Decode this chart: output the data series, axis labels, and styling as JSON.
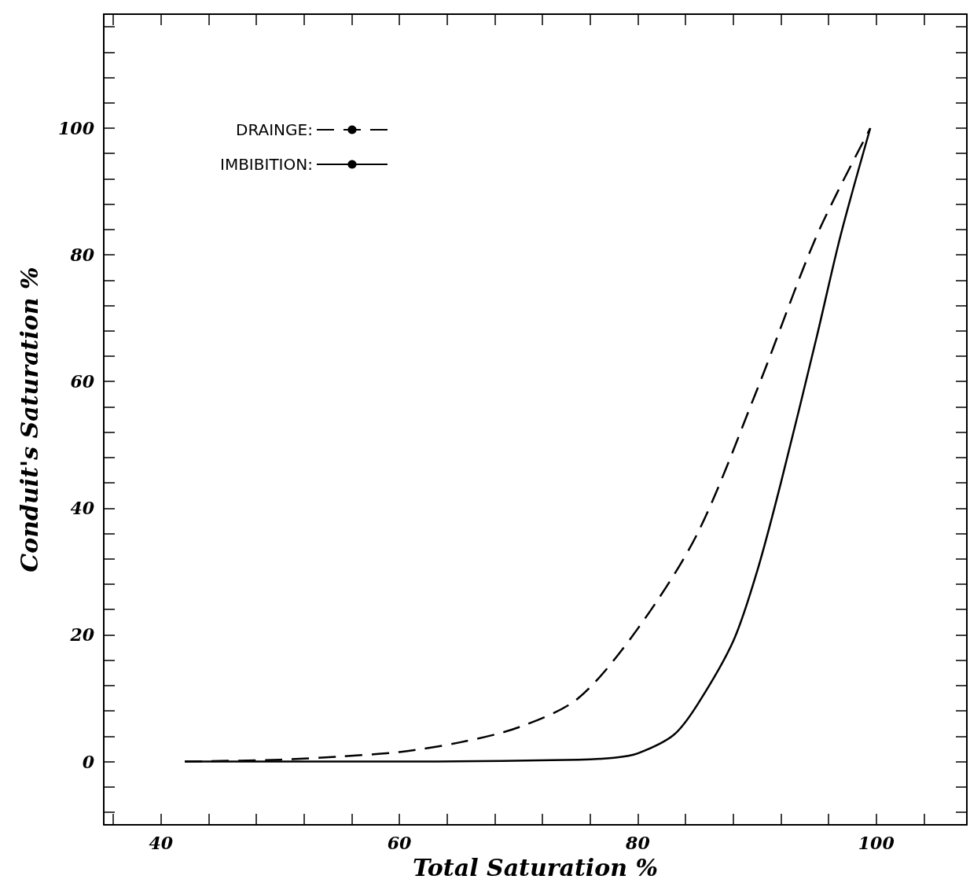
{
  "chart_data": {
    "type": "line",
    "xlabel": "Total Saturation %",
    "ylabel": "Conduit's Saturation %",
    "xlim": [
      35.2,
      107.6
    ],
    "ylim": [
      -10,
      118
    ],
    "xticks": [
      {
        "value": 36,
        "label": null
      },
      40,
      {
        "value": 44,
        "label": null
      },
      {
        "value": 48,
        "label": null
      },
      {
        "value": 52,
        "label": null
      },
      {
        "value": 56,
        "label": null
      },
      60,
      {
        "value": 64,
        "label": null
      },
      {
        "value": 68,
        "label": null
      },
      {
        "value": 72,
        "label": null
      },
      {
        "value": 76,
        "label": null
      },
      80,
      {
        "value": 84,
        "label": null
      },
      {
        "value": 88,
        "label": null
      },
      {
        "value": 92,
        "label": null
      },
      {
        "value": 96,
        "label": null
      },
      100,
      {
        "value": 104,
        "label": null
      }
    ],
    "yticks": [
      {
        "value": -8,
        "label": null
      },
      {
        "value": -4,
        "label": null
      },
      0,
      {
        "value": 4,
        "label": null
      },
      {
        "value": 8,
        "label": null
      },
      {
        "value": 12,
        "label": null
      },
      {
        "value": 16,
        "label": null
      },
      20,
      {
        "value": 24,
        "label": null
      },
      {
        "value": 28,
        "label": null
      },
      {
        "value": 32,
        "label": null
      },
      {
        "value": 36,
        "label": null
      },
      40,
      {
        "value": 44,
        "label": null
      },
      {
        "value": 48,
        "label": null
      },
      {
        "value": 52,
        "label": null
      },
      {
        "value": 56,
        "label": null
      },
      60,
      {
        "value": 64,
        "label": null
      },
      {
        "value": 68,
        "label": null
      },
      {
        "value": 72,
        "label": null
      },
      {
        "value": 76,
        "label": null
      },
      80,
      {
        "value": 84,
        "label": null
      },
      {
        "value": 88,
        "label": null
      },
      {
        "value": 92,
        "label": null
      },
      {
        "value": 96,
        "label": null
      },
      100,
      {
        "value": 104,
        "label": null
      },
      {
        "value": 108,
        "label": null
      },
      {
        "value": 112,
        "label": null
      },
      {
        "value": 116,
        "label": null
      }
    ],
    "grid": false,
    "legend": "top left",
    "marker": "none",
    "series": [
      {
        "name": "DRAINGE:",
        "color": "#000000",
        "line_style": "dashed",
        "x": [
          42,
          50,
          55,
          60,
          65,
          70,
          75,
          80,
          85,
          90,
          95,
          99.5
        ],
        "values": [
          0,
          0.3,
          0.8,
          1.5,
          3,
          5.4,
          10,
          21,
          36,
          58.7,
          83,
          100
        ]
      },
      {
        "name": "IMBIBITION:",
        "color": "#000000",
        "line_style": "solid",
        "x": [
          42,
          60,
          75,
          78,
          80,
          83,
          85,
          88,
          90,
          92,
          95,
          97,
          99.5
        ],
        "values": [
          0,
          0,
          0.3,
          0.6,
          1.3,
          4.2,
          9,
          19,
          30,
          44,
          67,
          83,
          100
        ]
      }
    ]
  }
}
